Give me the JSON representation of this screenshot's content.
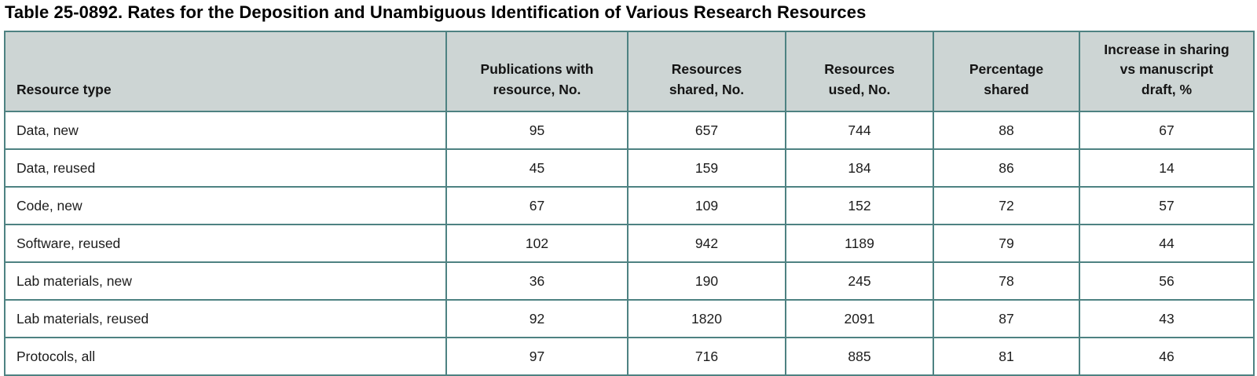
{
  "page": {
    "title": "Table 25-0892. Rates for the Deposition and Unambiguous Identification of Various Research Resources"
  },
  "colors": {
    "table_border": "#4e8282",
    "header_background": "#cdd5d4",
    "row_background": "#ffffff",
    "title_text": "#000000",
    "cell_text": "#1c1c1c"
  },
  "table": {
    "columns": [
      {
        "label": "Resource type"
      },
      {
        "label": "Publications with\nresource, No."
      },
      {
        "label": "Resources\nshared, No."
      },
      {
        "label": "Resources\nused, No."
      },
      {
        "label": "Percentage\nshared"
      },
      {
        "label": "Increase in sharing\nvs manuscript\ndraft, %"
      }
    ],
    "rows": [
      [
        "Data, new",
        "95",
        "657",
        "744",
        "88",
        "67"
      ],
      [
        "Data, reused",
        "45",
        "159",
        "184",
        "86",
        "14"
      ],
      [
        "Code, new",
        "67",
        "109",
        "152",
        "72",
        "57"
      ],
      [
        "Software, reused",
        "102",
        "942",
        "1189",
        "79",
        "44"
      ],
      [
        "Lab materials, new",
        "36",
        "190",
        "245",
        "78",
        "56"
      ],
      [
        "Lab materials, reused",
        "92",
        "1820",
        "2091",
        "87",
        "43"
      ],
      [
        "Protocols, all",
        "97",
        "716",
        "885",
        "81",
        "46"
      ]
    ]
  },
  "chart_data": {
    "type": "table",
    "title": "Table 25-0892. Rates for the Deposition and Unambiguous Identification of Various Research Resources",
    "categories": [
      "Data, new",
      "Data, reused",
      "Code, new",
      "Software, reused",
      "Lab materials, new",
      "Lab materials, reused",
      "Protocols, all"
    ],
    "series": [
      {
        "name": "Publications with resource, No.",
        "values": [
          95,
          45,
          67,
          102,
          36,
          92,
          97
        ]
      },
      {
        "name": "Resources shared, No.",
        "values": [
          657,
          159,
          109,
          942,
          190,
          1820,
          716
        ]
      },
      {
        "name": "Resources used, No.",
        "values": [
          744,
          184,
          152,
          1189,
          245,
          2091,
          885
        ]
      },
      {
        "name": "Percentage shared",
        "values": [
          88,
          86,
          72,
          79,
          78,
          87,
          81
        ]
      },
      {
        "name": "Increase in sharing vs manuscript draft, %",
        "values": [
          67,
          14,
          57,
          44,
          56,
          43,
          46
        ]
      }
    ]
  }
}
